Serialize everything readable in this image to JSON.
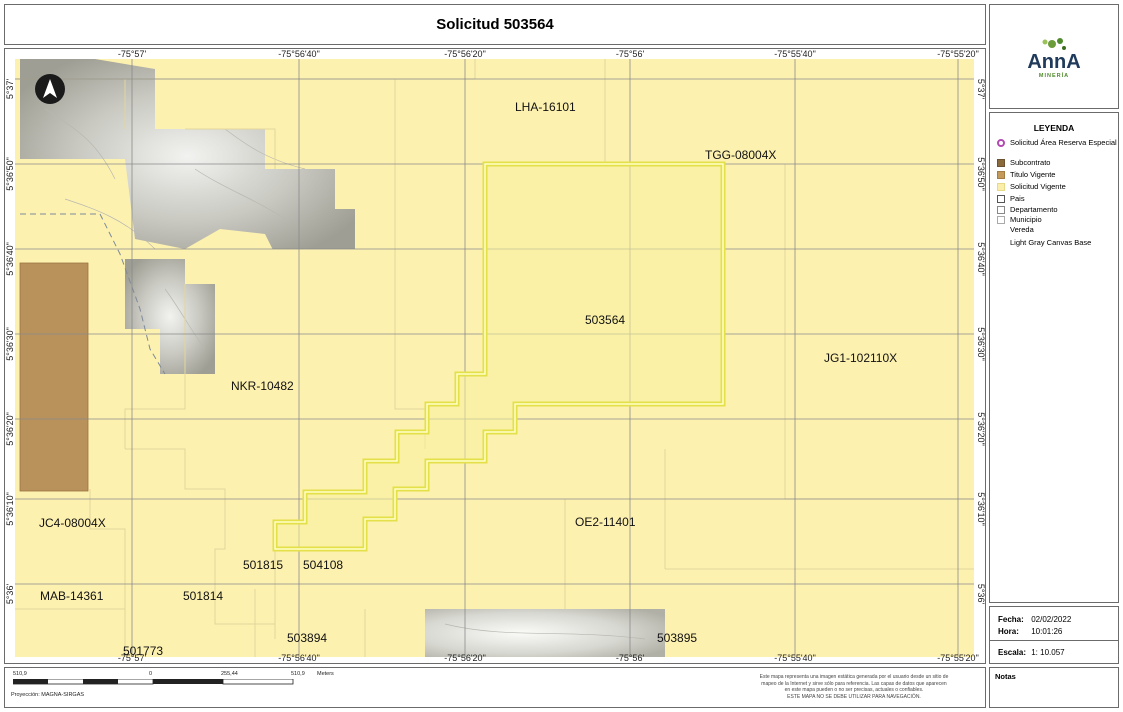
{
  "title": "Solicitud 503564",
  "map": {
    "colors": {
      "solicitud_vigente": "#fdf1b0",
      "selected_fill": "#f8f0a2",
      "selected_border": "#e3e04a",
      "titulo_vigente": "#b9915a",
      "grid": "#8a8a8a",
      "terrain": "#a9a9a0"
    },
    "icons": [
      "north-arrow-icon"
    ],
    "top_ticks": [
      "-75°57'",
      "-75°56'40\"",
      "-75°56'20\"",
      "-75°56'",
      "-75°55'40\"",
      "-75°55'20\""
    ],
    "bottom_ticks": [
      "-75°57'",
      "-75°56'40\"",
      "-75°56'20\"",
      "-75°56'",
      "-75°55'40\"",
      "-75°55'20\""
    ],
    "left_ticks": [
      "5°37'",
      "5°36'50\"",
      "5°36'40\"",
      "5°36'30\"",
      "5°36'20\"",
      "5°36'10\"",
      "5°36'"
    ],
    "right_ticks": [
      "5°37'",
      "5°36'50\"",
      "5°36'40\"",
      "5°36'30\"",
      "5°36'20\"",
      "5°36'10\"",
      "5°36'"
    ],
    "labels": {
      "lha": "LHA-16101",
      "tgg": "TGG-08004X",
      "main": "503564",
      "jg1": "JG1-102110X",
      "nkr": "NKR-10482",
      "jc4": "JC4-08004X",
      "oe2": "OE2-11401",
      "s501815": "501815",
      "s504108": "504108",
      "mab": "MAB-14361",
      "s501814": "501814",
      "s501773": "501773",
      "s503894": "503894",
      "s503895": "503895"
    }
  },
  "logo": {
    "text": "AnnA",
    "sub": "MINERÍA"
  },
  "legend": {
    "title": "LEYENDA",
    "items": [
      {
        "label": "Solicitud Área Reserva Especial",
        "swatch": "#ffffff",
        "border": "#b24ab2"
      },
      {
        "label": "Subcontrato",
        "swatch": "#8a6a3a",
        "border": "#6b5230"
      },
      {
        "label": "Titulo Vigente",
        "swatch": "#c49a5a",
        "border": "#a27d45"
      },
      {
        "label": "Solicitud Vigente",
        "swatch": "#fbeeaa",
        "border": "#e7d98a"
      },
      {
        "label": "Pais",
        "swatch": "#ffffff",
        "border": "#555555"
      },
      {
        "label": "Departamento",
        "swatch": "#ffffff",
        "border": "#888888"
      },
      {
        "label": "Municipio",
        "swatch": "#ffffff",
        "border": "#aaaaaa"
      },
      {
        "label": "Vereda",
        "swatch": "#ffffff",
        "border": "#ffffff"
      },
      {
        "label": "Light Gray Canvas Base",
        "swatch": "#ffffff",
        "border": "#ffffff"
      }
    ]
  },
  "info": {
    "fecha_label": "Fecha:",
    "fecha": "02/02/2022",
    "hora_label": "Hora:",
    "hora": "10:01:26",
    "escala_label": "Escala:",
    "escala": "1: 10.057"
  },
  "scalebar": {
    "labels": [
      "510,9",
      "0",
      "255,44",
      "510,9"
    ],
    "unit": "Meters",
    "projection": "Proyección: MAGNA-SIRGAS"
  },
  "disclaimer": [
    "Este mapa representa una imagen estática generada por el usuario desde un sitio de",
    "mapeo de la Internet y  sirve sólo para referencia. Las capas de datos que aparecen",
    "en este mapa pueden o no ser precisas, actuales o confiables.",
    "ESTE MAPA NO SE DEBE UTILIZAR PARA NAVEGACIÓN."
  ],
  "notes": {
    "title": "Notas"
  }
}
